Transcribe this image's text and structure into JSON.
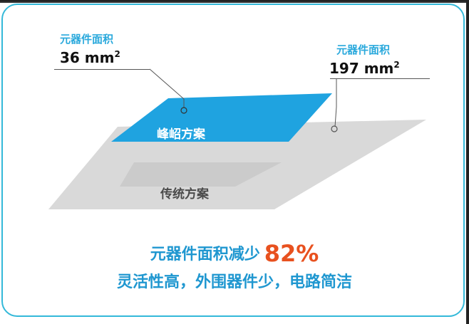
{
  "callouts": {
    "small": {
      "label": "元器件面积",
      "value": "36 mm",
      "unit_sup": "2"
    },
    "large": {
      "label": "元器件面积",
      "value": "197 mm",
      "unit_sup": "2"
    }
  },
  "plates": {
    "top_label": "峰岹方案",
    "bottom_label": "传统方案"
  },
  "summary": {
    "line1": "元器件面积减少",
    "percent": "82%",
    "line2": "灵活性高，外围器件少，电路简洁"
  },
  "colors": {
    "border": "#34b9d9",
    "label_blue": "#2aa9dc",
    "top_plate": "#1fa3e0",
    "bottom_plate": "#d9d9d9",
    "summary_text": "#1f97d0",
    "percent": "#e8511f"
  }
}
